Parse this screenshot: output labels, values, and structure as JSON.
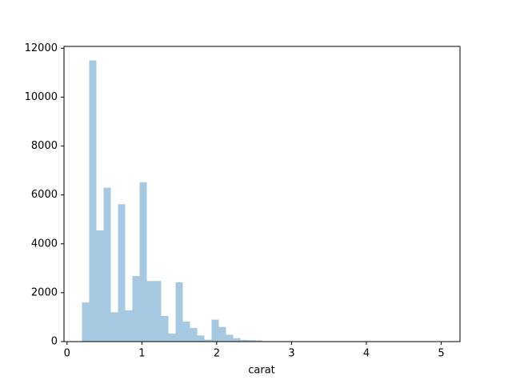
{
  "chart_data": {
    "type": "histogram",
    "xlabel": "carat",
    "bins": [
      0.2,
      0.2962,
      0.3924,
      0.4886,
      0.5848,
      0.681,
      0.7772,
      0.8734,
      0.9696,
      1.0658,
      1.162,
      1.2582,
      1.3544,
      1.4506,
      1.5468,
      1.643,
      1.7392,
      1.8354,
      1.9316,
      2.0278,
      2.124,
      2.2202,
      2.3164,
      2.4126,
      2.5088,
      2.605,
      2.7012,
      2.7974,
      2.8936,
      2.9898,
      3.086,
      3.1822,
      3.2784,
      3.3746,
      3.4708,
      3.567,
      3.6632,
      3.7594,
      3.8556,
      3.9518,
      4.048,
      4.1442,
      4.2404,
      4.3366,
      4.4328,
      4.529,
      4.6252,
      4.7214,
      4.8176,
      4.9138,
      5.01
    ],
    "counts": [
      1600,
      11500,
      4550,
      6300,
      1200,
      5620,
      1280,
      2680,
      6520,
      2480,
      2480,
      1050,
      330,
      2420,
      820,
      560,
      250,
      80,
      900,
      600,
      280,
      140,
      70,
      60,
      50,
      12,
      8,
      6,
      4,
      4,
      3,
      2,
      2,
      1,
      1,
      1,
      1,
      1,
      1,
      1,
      2,
      1,
      0,
      0,
      0,
      0,
      0,
      0,
      0,
      1
    ],
    "color": "#a6c8e0",
    "xlim": [
      -0.0405,
      5.2505
    ],
    "xticks": [
      0,
      1,
      2,
      3,
      4,
      5
    ],
    "ylim": [
      0,
      12075
    ],
    "yticks": [
      0,
      2000,
      4000,
      6000,
      8000,
      10000,
      12000
    ]
  }
}
